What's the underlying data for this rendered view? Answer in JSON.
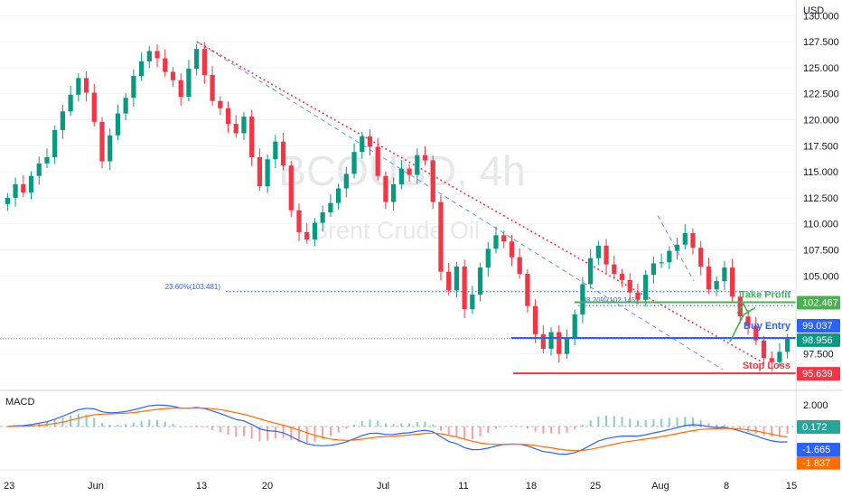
{
  "chart_data": {
    "type": "candlestick",
    "symbol_watermark": "BCOUSD, 4h",
    "symbol_subtitle": "Brent Crude Oil",
    "currency": "USD",
    "y_ticks": [
      "130.000",
      "127.500",
      "125.000",
      "122.500",
      "120.000",
      "117.500",
      "115.000",
      "112.500",
      "110.000",
      "107.500",
      "105.000",
      "97.500"
    ],
    "y_range": [
      94.0,
      131.5
    ],
    "x_ticks": [
      "23",
      "Jun",
      "13",
      "20",
      "Jul",
      "11",
      "18",
      "25",
      "Aug",
      "8",
      "15"
    ],
    "price_levels": {
      "current": {
        "value": 98.956,
        "label": "98.956",
        "color": "#089981"
      },
      "buy_entry": {
        "value": 99.037,
        "label": "99.037",
        "name": "Buy Entry",
        "color": "#2962ff"
      },
      "take_profit": {
        "value": 102.467,
        "label": "102.467",
        "name": "Take Profit",
        "color": "#4caf50"
      },
      "stop_loss": {
        "value": 95.639,
        "label": "95.639",
        "name": "Stop Loss",
        "color": "#f23645"
      }
    },
    "fib_levels": [
      {
        "label": "23.60%(103.481)",
        "value": 103.481
      },
      {
        "label": "38.20%(102.145)",
        "value": 102.145
      }
    ],
    "colors": {
      "up": "#089981",
      "down": "#f23645",
      "macd": "#2962ff",
      "signal": "#ff6d00",
      "trend": "#f23645"
    },
    "macd": {
      "label": "MACD",
      "ticks": [
        "2.000"
      ],
      "values": {
        "histogram": "0.172",
        "macd": "-1.665",
        "signal": "-1.837"
      }
    },
    "closes": [
      112.5,
      113.8,
      113.0,
      114.6,
      115.8,
      116.4,
      119.0,
      120.8,
      122.4,
      124.0,
      122.6,
      119.8,
      116.0,
      118.5,
      120.6,
      122.1,
      124.2,
      125.6,
      126.6,
      125.9,
      124.6,
      123.8,
      122.2,
      124.9,
      126.8,
      124.3,
      121.8,
      121.1,
      119.6,
      118.7,
      120.3,
      116.4,
      113.6,
      116.2,
      117.9,
      115.6,
      111.3,
      109.2,
      108.5,
      110.1,
      111.1,
      112.0,
      113.4,
      114.8,
      116.9,
      118.4,
      117.4,
      114.6,
      112.1,
      113.8,
      115.3,
      114.7,
      116.6,
      116.1,
      112.1,
      105.4,
      103.6,
      105.9,
      101.8,
      103.2,
      105.8,
      107.6,
      108.9,
      108.3,
      106.8,
      105.2,
      102.1,
      99.4,
      98.0,
      99.6,
      97.5,
      99.0,
      101.3,
      104.2,
      106.7,
      107.9,
      106.1,
      105.2,
      104.6,
      103.4,
      102.7,
      105.1,
      106.2,
      106.3,
      107.4,
      108.0,
      109.1,
      107.7,
      105.9,
      103.7,
      104.5,
      105.8,
      103.0,
      101.1,
      100.2,
      98.8,
      97.1,
      96.7,
      97.7,
      98.956
    ]
  }
}
